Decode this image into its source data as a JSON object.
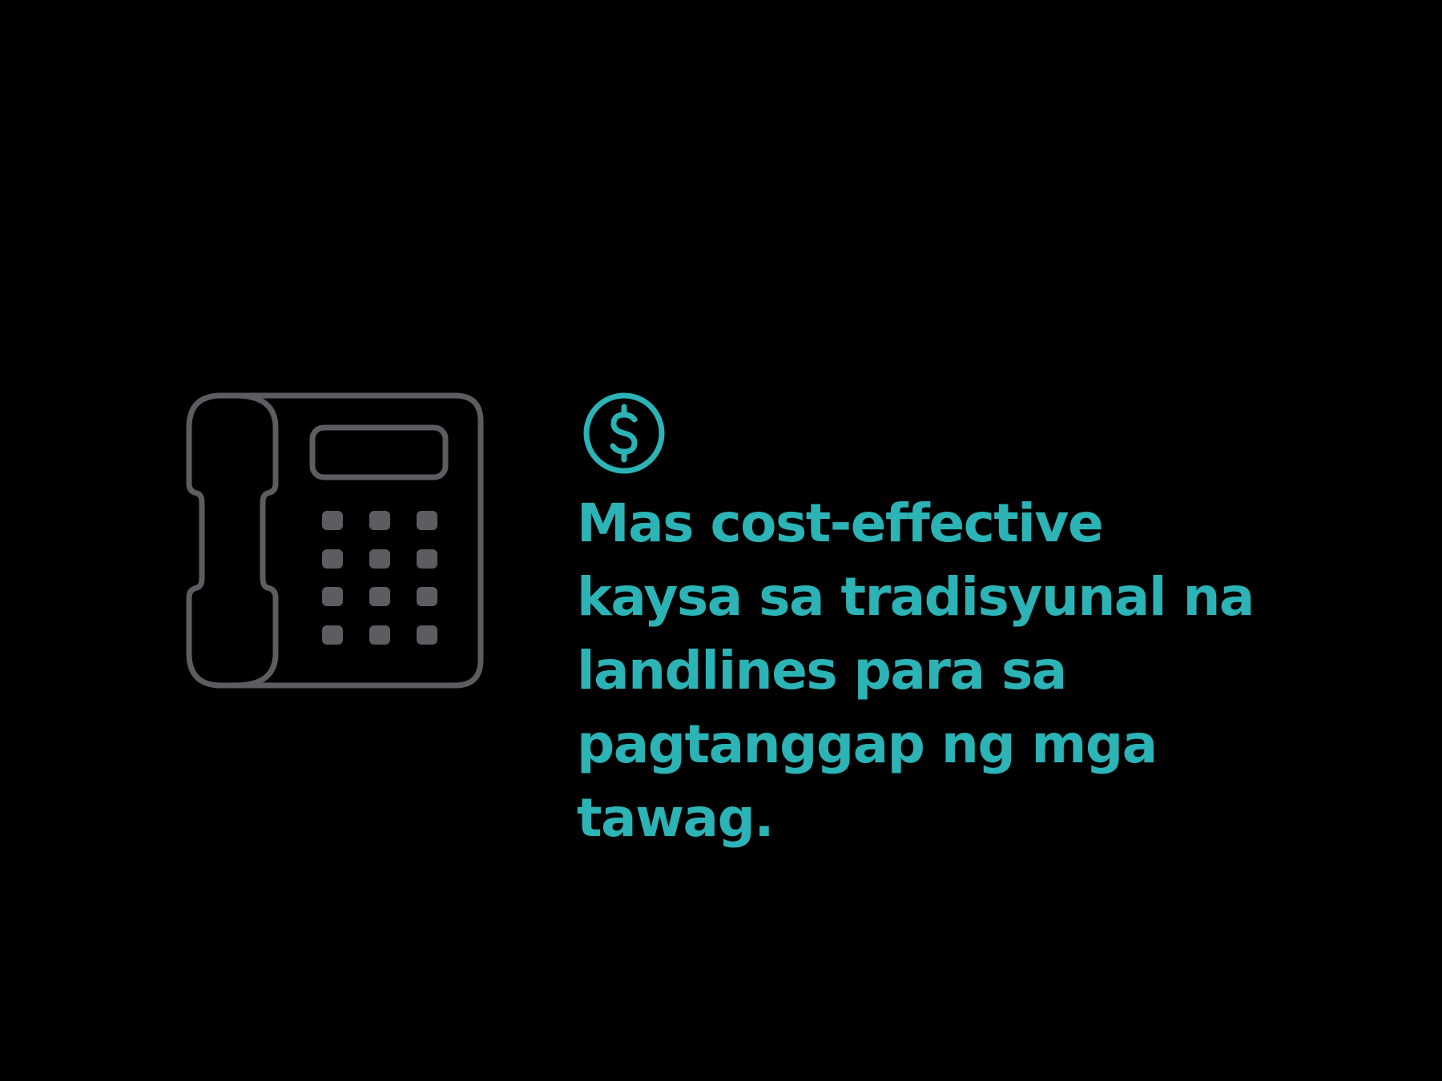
{
  "icons": {
    "phone": "desk-phone-icon",
    "currency": "dollar-circle-icon"
  },
  "colors": {
    "background": "#000000",
    "accent": "#2bb3b5",
    "icon_gray": "#5c5d60"
  },
  "message": {
    "lines": [
      "Mas cost-effective",
      "kaysa sa tradisyunal na",
      "landlines para sa",
      "pagtanggap ng mga",
      "tawag."
    ]
  }
}
